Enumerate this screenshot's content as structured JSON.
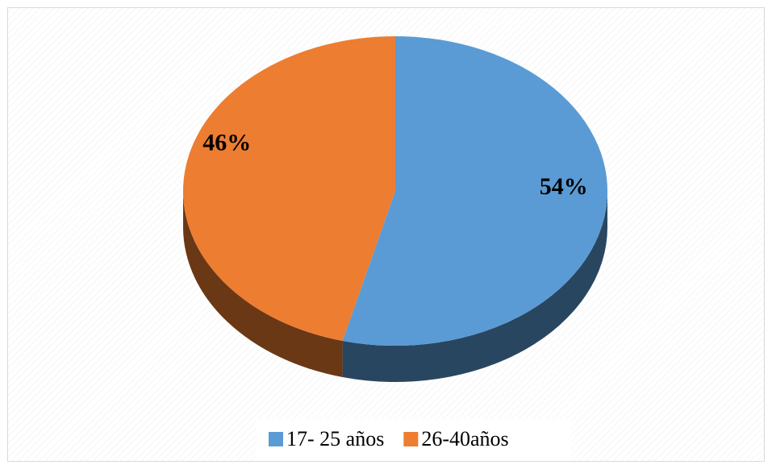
{
  "chart_data": {
    "type": "pie",
    "categories": [
      "17- 25 años",
      "26-40años"
    ],
    "values": [
      54,
      46
    ],
    "value_labels": [
      "54%",
      "46%"
    ],
    "colors": [
      "#5b9bd5",
      "#ed7d31"
    ]
  }
}
